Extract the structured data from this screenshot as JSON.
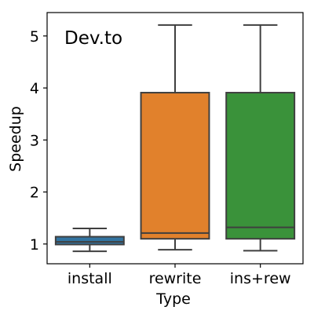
{
  "chart_data": {
    "type": "box",
    "annotation": "Dev.to",
    "xlabel": "Type",
    "ylabel": "Speedup",
    "ylim": [
      0.62,
      5.45
    ],
    "yticks": [
      1,
      2,
      3,
      4,
      5
    ],
    "grid": false,
    "categories": [
      "install",
      "rewrite",
      "ins+rew"
    ],
    "colors": [
      "#3274a1",
      "#e1812c",
      "#3a923a"
    ],
    "boxes": [
      {
        "category": "install",
        "whisker_low": 0.86,
        "q1": 0.99,
        "median": 1.04,
        "q3": 1.14,
        "whisker_high": 1.3
      },
      {
        "category": "rewrite",
        "whisker_low": 0.89,
        "q1": 1.1,
        "median": 1.21,
        "q3": 3.91,
        "whisker_high": 5.21
      },
      {
        "category": "ins+rew",
        "whisker_low": 0.87,
        "q1": 1.1,
        "median": 1.32,
        "q3": 3.91,
        "whisker_high": 5.21
      }
    ]
  }
}
